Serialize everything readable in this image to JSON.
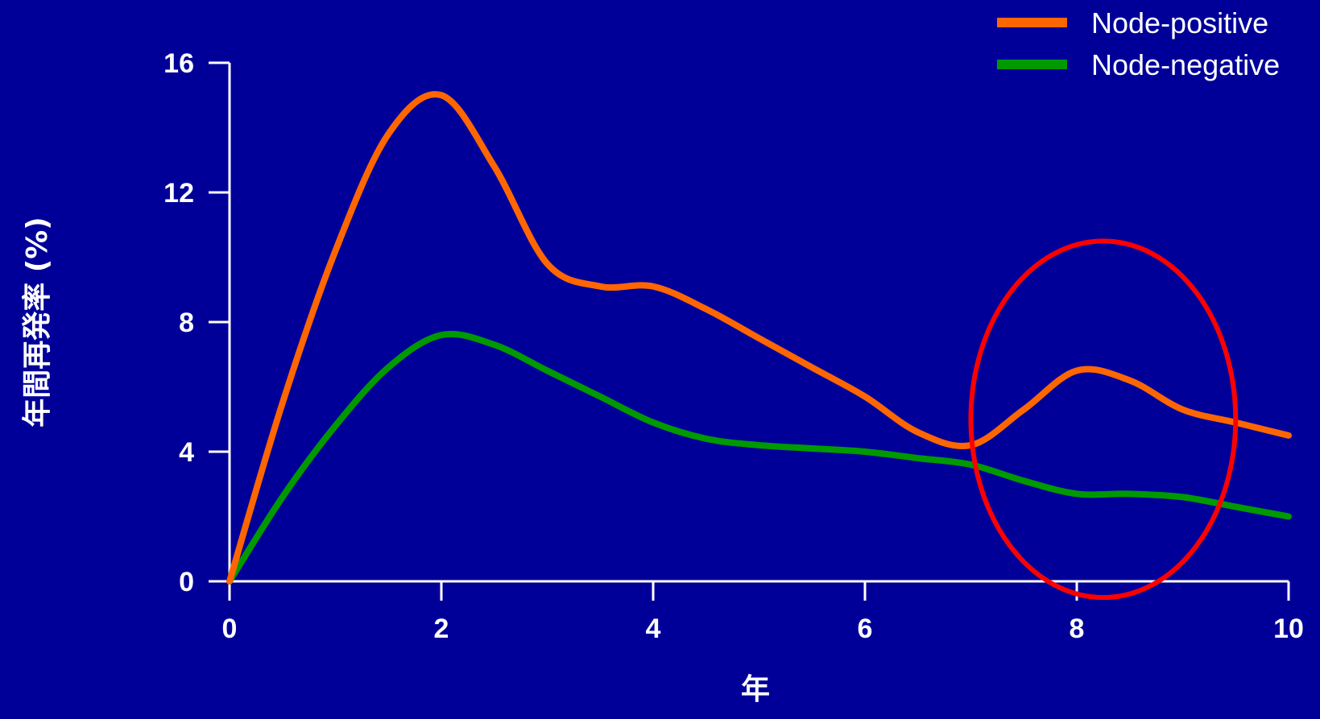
{
  "chart_data": {
    "type": "line",
    "xlabel": "年",
    "ylabel": "年間再発率 (%)",
    "xlim": [
      0,
      10
    ],
    "ylim": [
      0,
      16
    ],
    "x_ticks": [
      0,
      2,
      4,
      6,
      8,
      10
    ],
    "y_ticks": [
      0,
      4,
      8,
      12,
      16
    ],
    "grid": false,
    "legend_position": "top-right",
    "series": [
      {
        "name": "Node-positive",
        "color": "#ff6600",
        "x": [
          0,
          0.5,
          1,
          1.5,
          2,
          2.5,
          3,
          3.5,
          4,
          4.5,
          5,
          5.5,
          6,
          6.5,
          7,
          7.5,
          8,
          8.5,
          9,
          9.5,
          10
        ],
        "y": [
          0,
          5.5,
          10.2,
          13.8,
          15.0,
          12.8,
          9.8,
          9.1,
          9.1,
          8.4,
          7.5,
          6.6,
          5.7,
          4.6,
          4.2,
          5.3,
          6.5,
          6.2,
          5.3,
          4.9,
          4.5
        ]
      },
      {
        "name": "Node-negative",
        "color": "#009900",
        "x": [
          0,
          0.5,
          1,
          1.5,
          2,
          2.5,
          3,
          3.5,
          4,
          4.5,
          5,
          5.5,
          6,
          6.5,
          7,
          7.5,
          8,
          8.5,
          9,
          9.5,
          10
        ],
        "y": [
          0,
          2.6,
          4.8,
          6.6,
          7.6,
          7.3,
          6.5,
          5.7,
          4.9,
          4.4,
          4.2,
          4.1,
          4.0,
          3.8,
          3.6,
          3.1,
          2.7,
          2.7,
          2.6,
          2.3,
          2.0
        ]
      }
    ],
    "annotations": [
      {
        "type": "ellipse",
        "color": "#ff0000",
        "x_center": 8.25,
        "y_center": 5.0,
        "x_radius": 1.25,
        "y_radius": 5.5
      }
    ]
  }
}
